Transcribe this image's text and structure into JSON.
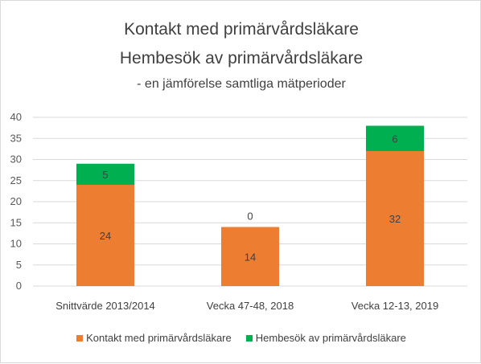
{
  "chart_data": {
    "type": "bar",
    "stacked": true,
    "title": "Kontakt med primärvårdsläkare",
    "subtitle": "Hembesök av primärvårdsläkare",
    "subtitle2": "- en jämförelse samtliga mätperioder",
    "categories": [
      "Snittvärde 2013/2014",
      "Vecka 47-48, 2018",
      "Vecka 12-13, 2019"
    ],
    "series": [
      {
        "name": "Kontakt med primärvårdsläkare",
        "values": [
          24,
          14,
          32
        ],
        "color": "#ED7D31"
      },
      {
        "name": "Hembesök av primärvårdsläkare",
        "values": [
          5,
          0,
          6
        ],
        "color": "#00B050"
      }
    ],
    "yticks": [
      "0",
      "5",
      "10",
      "15",
      "20",
      "25",
      "30",
      "35",
      "40"
    ],
    "ylim": [
      0,
      40
    ],
    "grid": true,
    "legend_position": "bottom"
  }
}
